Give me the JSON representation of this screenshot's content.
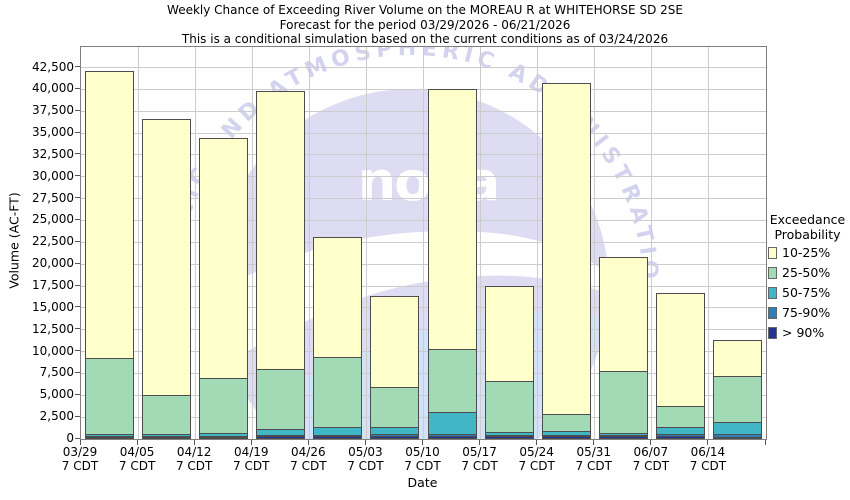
{
  "header": {
    "title_line1": "Weekly Chance of Exceeding River Volume on the MOREAU R at WHITEHORSE SD 2SE",
    "title_line2": "Forecast for the period 03/29/2026 - 06/21/2026",
    "title_line3": "This is a conditional simulation based on the current conditions as of 03/24/2026"
  },
  "chart_data": {
    "type": "bar",
    "stacked": true,
    "title": "Weekly Chance of Exceeding River Volume on the MOREAU R at WHITEHORSE SD 2SE",
    "xlabel": "Date",
    "ylabel": "Volume (AC-FT)",
    "ylim": [
      0,
      44850
    ],
    "ytick_step": 2500,
    "ytick_max": 42500,
    "grid": true,
    "categories": [
      "03/29",
      "04/05",
      "04/12",
      "04/19",
      "04/26",
      "05/03",
      "05/10",
      "05/17",
      "05/24",
      "05/31",
      "06/07",
      "06/14"
    ],
    "category_sublabel": "7 CDT",
    "series": [
      {
        "name": "> 90%",
        "color": "#253494",
        "values": [
          250,
          200,
          250,
          300,
          350,
          350,
          400,
          300,
          350,
          300,
          300,
          250
        ]
      },
      {
        "name": "75-90%",
        "color": "#2c7fb8",
        "values": [
          150,
          150,
          150,
          200,
          200,
          300,
          300,
          200,
          200,
          200,
          400,
          450
        ]
      },
      {
        "name": "50-75%",
        "color": "#41b6c4",
        "values": [
          300,
          300,
          400,
          900,
          1050,
          950,
          2600,
          500,
          550,
          400,
          900,
          1500
        ]
      },
      {
        "name": "25-50%",
        "color": "#a1dab4",
        "values": [
          8800,
          4650,
          6500,
          6900,
          8100,
          4700,
          7400,
          6000,
          2100,
          7200,
          2500,
          5400
        ]
      },
      {
        "name": "10-25%",
        "color": "#ffffcc",
        "values": [
          33000,
          31700,
          27500,
          32000,
          13900,
          10500,
          29800,
          10900,
          38000,
          13200,
          13100,
          4200
        ]
      }
    ],
    "bar_totals": [
      42500,
      37000,
      34800,
      40300,
      23600,
      16800,
      40500,
      17900,
      41200,
      21300,
      17200,
      11800
    ],
    "legend_position": "right"
  },
  "legend": {
    "title_line1": "Exceedance",
    "title_line2": "Probability",
    "entries": [
      {
        "label": "10-25%",
        "color": "#ffffcc"
      },
      {
        "label": "25-50%",
        "color": "#a1dab4"
      },
      {
        "label": "50-75%",
        "color": "#41b6c4"
      },
      {
        "label": "75-90%",
        "color": "#2c7fb8"
      },
      {
        "label": "> 90%",
        "color": "#253494"
      }
    ]
  },
  "watermark": {
    "text": "noaa",
    "arc_text": "OCEANIC AND ATMOSPHERIC ADMINISTRATION"
  }
}
